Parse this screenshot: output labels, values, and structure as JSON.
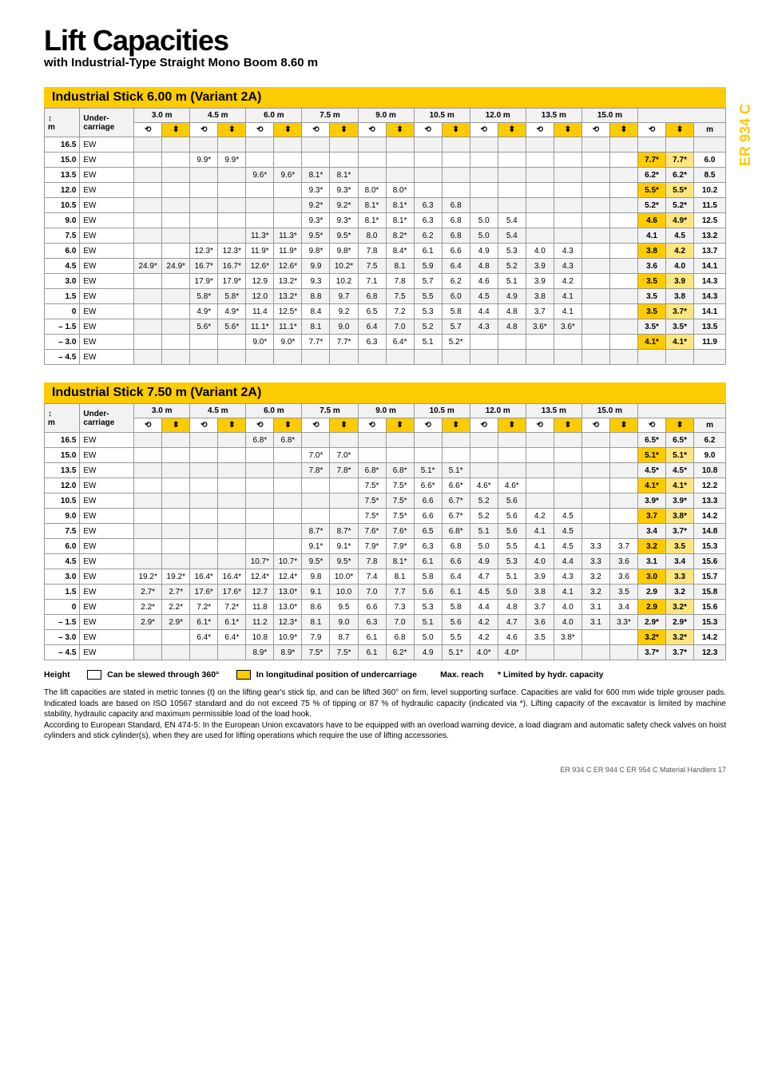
{
  "title": "Lift Capacities",
  "subtitle": "with Industrial-Type Straight Mono Boom 8.60 m",
  "sidetab": "ER 934 C",
  "cols": [
    "3.0 m",
    "4.5 m",
    "6.0 m",
    "7.5 m",
    "9.0 m",
    "10.5 m",
    "12.0 m",
    "13.5 m",
    "15.0 m"
  ],
  "headLeft1": "m",
  "headLeft2": "Under-\ncarriage",
  "reachHead": "m",
  "tables": [
    {
      "name": "Industrial Stick 6.00 m (Variant 2A)",
      "rows": [
        {
          "h": "16.5",
          "uc": "EW",
          "c": [
            "",
            "",
            "",
            "",
            "",
            "",
            "",
            "",
            "",
            "",
            "",
            "",
            "",
            "",
            "",
            "",
            "",
            ""
          ],
          "r": [
            "",
            "",
            ""
          ],
          "odd": true
        },
        {
          "h": "15.0",
          "uc": "EW",
          "c": [
            "",
            "",
            "9.9*",
            "9.9*",
            "",
            "",
            "",
            "",
            "",
            "",
            "",
            "",
            "",
            "",
            "",
            "",
            "",
            ""
          ],
          "r": [
            "7.7*",
            "7.7*",
            "6.0"
          ]
        },
        {
          "h": "13.5",
          "uc": "EW",
          "c": [
            "",
            "",
            "",
            "",
            "9.6*",
            "9.6*",
            "8.1*",
            "8.1*",
            "",
            "",
            "",
            "",
            "",
            "",
            "",
            "",
            "",
            ""
          ],
          "r": [
            "6.2*",
            "6.2*",
            "8.5"
          ],
          "odd": true
        },
        {
          "h": "12.0",
          "uc": "EW",
          "c": [
            "",
            "",
            "",
            "",
            "",
            "",
            "9.3*",
            "9.3*",
            "8.0*",
            "8.0*",
            "",
            "",
            "",
            "",
            "",
            "",
            "",
            ""
          ],
          "r": [
            "5.5*",
            "5.5*",
            "10.2"
          ]
        },
        {
          "h": "10.5",
          "uc": "EW",
          "c": [
            "",
            "",
            "",
            "",
            "",
            "",
            "9.2*",
            "9.2*",
            "8.1*",
            "8.1*",
            "6.3",
            "6.8",
            "",
            "",
            "",
            "",
            "",
            ""
          ],
          "r": [
            "5.2*",
            "5.2*",
            "11.5"
          ],
          "odd": true
        },
        {
          "h": "9.0",
          "uc": "EW",
          "c": [
            "",
            "",
            "",
            "",
            "",
            "",
            "9.3*",
            "9.3*",
            "8.1*",
            "8.1*",
            "6.3",
            "6.8",
            "5.0",
            "5.4",
            "",
            "",
            "",
            ""
          ],
          "r": [
            "4.6",
            "4.9*",
            "12.5"
          ]
        },
        {
          "h": "7.5",
          "uc": "EW",
          "c": [
            "",
            "",
            "",
            "",
            "11.3*",
            "11.3*",
            "9.5*",
            "9.5*",
            "8.0",
            "8.2*",
            "6.2",
            "6.8",
            "5.0",
            "5.4",
            "",
            "",
            "",
            ""
          ],
          "r": [
            "4.1",
            "4.5",
            "13.2"
          ],
          "odd": true
        },
        {
          "h": "6.0",
          "uc": "EW",
          "c": [
            "",
            "",
            "12.3*",
            "12.3*",
            "11.9*",
            "11.9*",
            "9.8*",
            "9.8*",
            "7.8",
            "8.4*",
            "6.1",
            "6.6",
            "4.9",
            "5.3",
            "4.0",
            "4.3",
            "",
            ""
          ],
          "r": [
            "3.8",
            "4.2",
            "13.7"
          ]
        },
        {
          "h": "4.5",
          "uc": "EW",
          "c": [
            "24.9*",
            "24.9*",
            "16.7*",
            "16.7*",
            "12.6*",
            "12.6*",
            "9.9",
            "10.2*",
            "7.5",
            "8.1",
            "5.9",
            "6.4",
            "4.8",
            "5.2",
            "3.9",
            "4.3",
            "",
            ""
          ],
          "r": [
            "3.6",
            "4.0",
            "14.1"
          ],
          "odd": true
        },
        {
          "h": "3.0",
          "uc": "EW",
          "c": [
            "",
            "",
            "17.9*",
            "17.9*",
            "12.9",
            "13.2*",
            "9.3",
            "10.2",
            "7.1",
            "7.8",
            "5.7",
            "6.2",
            "4.6",
            "5.1",
            "3.9",
            "4.2",
            "",
            ""
          ],
          "r": [
            "3.5",
            "3.9",
            "14.3"
          ]
        },
        {
          "h": "1.5",
          "uc": "EW",
          "c": [
            "",
            "",
            "5.8*",
            "5.8*",
            "12.0",
            "13.2*",
            "8.8",
            "9.7",
            "6.8",
            "7.5",
            "5.5",
            "6.0",
            "4.5",
            "4.9",
            "3.8",
            "4.1",
            "",
            ""
          ],
          "r": [
            "3.5",
            "3.8",
            "14.3"
          ],
          "odd": true
        },
        {
          "h": "0",
          "uc": "EW",
          "c": [
            "",
            "",
            "4.9*",
            "4.9*",
            "11.4",
            "12.5*",
            "8.4",
            "9.2",
            "6.5",
            "7.2",
            "5.3",
            "5.8",
            "4.4",
            "4.8",
            "3.7",
            "4.1",
            "",
            ""
          ],
          "r": [
            "3.5",
            "3.7*",
            "14.1"
          ]
        },
        {
          "h": "– 1.5",
          "uc": "EW",
          "c": [
            "",
            "",
            "5.6*",
            "5.6*",
            "11.1*",
            "11.1*",
            "8.1",
            "9.0",
            "6.4",
            "7.0",
            "5.2",
            "5.7",
            "4.3",
            "4.8",
            "3.6*",
            "3.6*",
            "",
            ""
          ],
          "r": [
            "3.5*",
            "3.5*",
            "13.5"
          ],
          "odd": true
        },
        {
          "h": "– 3.0",
          "uc": "EW",
          "c": [
            "",
            "",
            "",
            "",
            "9.0*",
            "9.0*",
            "7.7*",
            "7.7*",
            "6.3",
            "6.4*",
            "5.1",
            "5.2*",
            "",
            "",
            "",
            "",
            "",
            ""
          ],
          "r": [
            "4.1*",
            "4.1*",
            "11.9"
          ]
        },
        {
          "h": "– 4.5",
          "uc": "EW",
          "c": [
            "",
            "",
            "",
            "",
            "",
            "",
            "",
            "",
            "",
            "",
            "",
            "",
            "",
            "",
            "",
            "",
            "",
            ""
          ],
          "r": [
            "",
            "",
            ""
          ],
          "odd": true
        }
      ]
    },
    {
      "name": "Industrial Stick 7.50 m (Variant 2A)",
      "rows": [
        {
          "h": "16.5",
          "uc": "EW",
          "c": [
            "",
            "",
            "",
            "",
            "6.8*",
            "6.8*",
            "",
            "",
            "",
            "",
            "",
            "",
            "",
            "",
            "",
            "",
            "",
            ""
          ],
          "r": [
            "6.5*",
            "6.5*",
            "6.2"
          ],
          "odd": true
        },
        {
          "h": "15.0",
          "uc": "EW",
          "c": [
            "",
            "",
            "",
            "",
            "",
            "",
            "7.0*",
            "7.0*",
            "",
            "",
            "",
            "",
            "",
            "",
            "",
            "",
            "",
            ""
          ],
          "r": [
            "5.1*",
            "5.1*",
            "9.0"
          ]
        },
        {
          "h": "13.5",
          "uc": "EW",
          "c": [
            "",
            "",
            "",
            "",
            "",
            "",
            "7.8*",
            "7.8*",
            "6.8*",
            "6.8*",
            "5.1*",
            "5.1*",
            "",
            "",
            "",
            "",
            "",
            ""
          ],
          "r": [
            "4.5*",
            "4.5*",
            "10.8"
          ],
          "odd": true
        },
        {
          "h": "12.0",
          "uc": "EW",
          "c": [
            "",
            "",
            "",
            "",
            "",
            "",
            "",
            "",
            "7.5*",
            "7.5*",
            "6.6*",
            "6.6*",
            "4.6*",
            "4.6*",
            "",
            "",
            "",
            ""
          ],
          "r": [
            "4.1*",
            "4.1*",
            "12.2"
          ]
        },
        {
          "h": "10.5",
          "uc": "EW",
          "c": [
            "",
            "",
            "",
            "",
            "",
            "",
            "",
            "",
            "7.5*",
            "7.5*",
            "6.6",
            "6.7*",
            "5.2",
            "5.6",
            "",
            "",
            "",
            ""
          ],
          "r": [
            "3.9*",
            "3.9*",
            "13.3"
          ],
          "odd": true
        },
        {
          "h": "9.0",
          "uc": "EW",
          "c": [
            "",
            "",
            "",
            "",
            "",
            "",
            "",
            "",
            "7.5*",
            "7.5*",
            "6.6",
            "6.7*",
            "5.2",
            "5.6",
            "4.2",
            "4.5",
            "",
            ""
          ],
          "r": [
            "3.7",
            "3.8*",
            "14.2"
          ]
        },
        {
          "h": "7.5",
          "uc": "EW",
          "c": [
            "",
            "",
            "",
            "",
            "",
            "",
            "8.7*",
            "8.7*",
            "7.6*",
            "7.6*",
            "6.5",
            "6.8*",
            "5.1",
            "5.6",
            "4.1",
            "4.5",
            "",
            ""
          ],
          "r": [
            "3.4",
            "3.7*",
            "14.8"
          ],
          "odd": true
        },
        {
          "h": "6.0",
          "uc": "EW",
          "c": [
            "",
            "",
            "",
            "",
            "",
            "",
            "9.1*",
            "9.1*",
            "7.9*",
            "7.9*",
            "6.3",
            "6.8",
            "5.0",
            "5.5",
            "4.1",
            "4.5",
            "3.3",
            "3.7"
          ],
          "r": [
            "3.2",
            "3.5",
            "15.3"
          ]
        },
        {
          "h": "4.5",
          "uc": "EW",
          "c": [
            "",
            "",
            "",
            "",
            "10.7*",
            "10.7*",
            "9.5*",
            "9.5*",
            "7.8",
            "8.1*",
            "6.1",
            "6.6",
            "4.9",
            "5.3",
            "4.0",
            "4.4",
            "3.3",
            "3.6"
          ],
          "r": [
            "3.1",
            "3.4",
            "15.6"
          ],
          "odd": true
        },
        {
          "h": "3.0",
          "uc": "EW",
          "c": [
            "19.2*",
            "19.2*",
            "16.4*",
            "16.4*",
            "12.4*",
            "12.4*",
            "9.8",
            "10.0*",
            "7.4",
            "8.1",
            "5.8",
            "6.4",
            "4.7",
            "5.1",
            "3.9",
            "4.3",
            "3.2",
            "3.6"
          ],
          "r": [
            "3.0",
            "3.3",
            "15.7"
          ]
        },
        {
          "h": "1.5",
          "uc": "EW",
          "c": [
            "2.7*",
            "2.7*",
            "17.6*",
            "17.6*",
            "12.7",
            "13.0*",
            "9.1",
            "10.0",
            "7.0",
            "7.7",
            "5.6",
            "6.1",
            "4.5",
            "5.0",
            "3.8",
            "4.1",
            "3.2",
            "3.5"
          ],
          "r": [
            "2.9",
            "3.2",
            "15.8"
          ],
          "odd": true
        },
        {
          "h": "0",
          "uc": "EW",
          "c": [
            "2.2*",
            "2.2*",
            "7.2*",
            "7.2*",
            "11.8",
            "13.0*",
            "8.6",
            "9.5",
            "6.6",
            "7.3",
            "5.3",
            "5.8",
            "4.4",
            "4.8",
            "3.7",
            "4.0",
            "3.1",
            "3.4"
          ],
          "r": [
            "2.9",
            "3.2*",
            "15.6"
          ]
        },
        {
          "h": "– 1.5",
          "uc": "EW",
          "c": [
            "2.9*",
            "2.9*",
            "6.1*",
            "6.1*",
            "11.2",
            "12.3*",
            "8.1",
            "9.0",
            "6.3",
            "7.0",
            "5.1",
            "5.6",
            "4.2",
            "4.7",
            "3.6",
            "4.0",
            "3.1",
            "3.3*"
          ],
          "r": [
            "2.9*",
            "2.9*",
            "15.3"
          ],
          "odd": true
        },
        {
          "h": "– 3.0",
          "uc": "EW",
          "c": [
            "",
            "",
            "6.4*",
            "6.4*",
            "10.8",
            "10.9*",
            "7.9",
            "8.7",
            "6.1",
            "6.8",
            "5.0",
            "5.5",
            "4.2",
            "4.6",
            "3.5",
            "3.8*",
            "",
            ""
          ],
          "r": [
            "3.2*",
            "3.2*",
            "14.2"
          ]
        },
        {
          "h": "– 4.5",
          "uc": "EW",
          "c": [
            "",
            "",
            "",
            "",
            "8.9*",
            "8.9*",
            "7.5*",
            "7.5*",
            "6.1",
            "6.2*",
            "4.9",
            "5.1*",
            "4.0*",
            "4.0*",
            "",
            "",
            "",
            ""
          ],
          "r": [
            "3.7*",
            "3.7*",
            "12.3"
          ],
          "odd": true
        }
      ]
    }
  ],
  "legend": {
    "height": "Height",
    "slew": "Can be slewed through 360°",
    "lon": "In longitudinal position of undercarriage",
    "max": "Max. reach",
    "lim": "* Limited by hydr. capacity"
  },
  "note": "The lift capacities are stated in metric tonnes (t) on the lifting gear's stick tip, and can be lifted 360° on firm, level supporting surface. Capacities are valid for 600 mm wide triple grouser pads. Indicated loads are based on ISO 10567 standard and do not exceed 75 % of tipping or 87 % of hydraulic capacity (indicated via *). Lifting capacity of the excavator is limited by machine stability, hydraulic capacity and maximum permissible load of the load hook.\nAccording to European Standard, EN 474-5: In the European Union excavators have to be equipped with an overload warning device, a load diagram and automatic safety check valves on hoist cylinders and stick cylinder(s), when they are used for lifting operations which require the use of lifting accessories.",
  "foot": "ER 934 C  ER 944 C  ER 954 C Material Handlers   17"
}
